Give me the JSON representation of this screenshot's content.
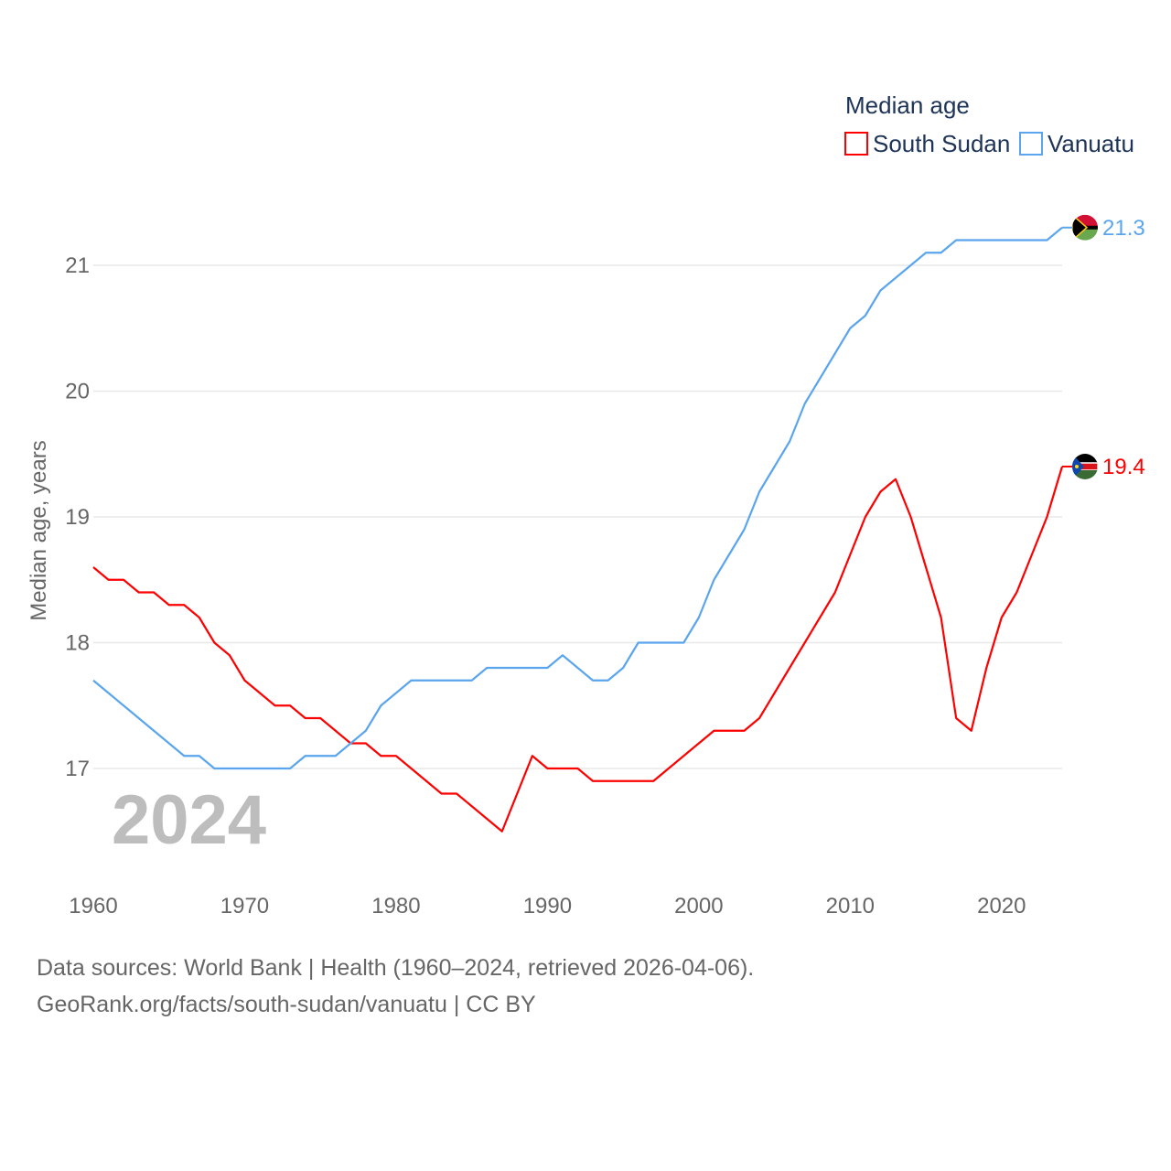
{
  "chart_data": {
    "type": "line",
    "title": "",
    "legend_title": "Median age",
    "legend_placement": "top-right",
    "xlabel": "",
    "ylabel": "Median age, years",
    "xlim": [
      1960,
      2024
    ],
    "ylim": [
      16.2,
      21.5
    ],
    "x_ticks": [
      "1960",
      "1970",
      "1980",
      "1990",
      "2000",
      "2010",
      "2020"
    ],
    "y_ticks": [
      "17",
      "18",
      "19",
      "20",
      "21"
    ],
    "grid": true,
    "year_watermark": "2024",
    "x": [
      1960,
      1961,
      1962,
      1963,
      1964,
      1965,
      1966,
      1967,
      1968,
      1969,
      1970,
      1971,
      1972,
      1973,
      1974,
      1975,
      1976,
      1977,
      1978,
      1979,
      1980,
      1981,
      1982,
      1983,
      1984,
      1985,
      1986,
      1987,
      1988,
      1989,
      1990,
      1991,
      1992,
      1993,
      1994,
      1995,
      1996,
      1997,
      1998,
      1999,
      2000,
      2001,
      2002,
      2003,
      2004,
      2005,
      2006,
      2007,
      2008,
      2009,
      2010,
      2011,
      2012,
      2013,
      2014,
      2015,
      2016,
      2017,
      2018,
      2019,
      2020,
      2021,
      2022,
      2023,
      2024
    ],
    "series": [
      {
        "name": "South Sudan",
        "color": "#ff0000",
        "end_label": "19.4",
        "flag": "south-sudan",
        "values": [
          18.6,
          18.5,
          18.5,
          18.4,
          18.4,
          18.3,
          18.3,
          18.2,
          18.0,
          17.9,
          17.7,
          17.6,
          17.5,
          17.5,
          17.4,
          17.4,
          17.3,
          17.2,
          17.2,
          17.1,
          17.1,
          17.0,
          16.9,
          16.8,
          16.8,
          16.7,
          16.6,
          16.5,
          16.8,
          17.1,
          17.0,
          17.0,
          17.0,
          16.9,
          16.9,
          16.9,
          16.9,
          16.9,
          17.0,
          17.1,
          17.2,
          17.3,
          17.3,
          17.3,
          17.4,
          17.6,
          17.8,
          18.0,
          18.2,
          18.4,
          18.7,
          19.0,
          19.2,
          19.3,
          19.0,
          18.6,
          18.2,
          17.4,
          17.3,
          17.8,
          18.2,
          18.4,
          18.7,
          19.0,
          19.4
        ]
      },
      {
        "name": "Vanuatu",
        "color": "#5aa5ee",
        "end_label": "21.3",
        "flag": "vanuatu",
        "values": [
          17.7,
          17.6,
          17.5,
          17.4,
          17.3,
          17.2,
          17.1,
          17.1,
          17.0,
          17.0,
          17.0,
          17.0,
          17.0,
          17.0,
          17.1,
          17.1,
          17.1,
          17.2,
          17.3,
          17.5,
          17.6,
          17.7,
          17.7,
          17.7,
          17.7,
          17.7,
          17.8,
          17.8,
          17.8,
          17.8,
          17.8,
          17.9,
          17.8,
          17.7,
          17.7,
          17.8,
          18.0,
          18.0,
          18.0,
          18.0,
          18.2,
          18.5,
          18.7,
          18.9,
          19.2,
          19.4,
          19.6,
          19.9,
          20.1,
          20.3,
          20.5,
          20.6,
          20.8,
          20.9,
          21.0,
          21.1,
          21.1,
          21.2,
          21.2,
          21.2,
          21.2,
          21.2,
          21.2,
          21.2,
          21.3
        ]
      }
    ]
  },
  "footer": {
    "source": "Data sources: World Bank | Health (1960–2024, retrieved 2026-04-06).",
    "credit": "GeoRank.org/facts/south-sudan/vanuatu | CC BY"
  }
}
